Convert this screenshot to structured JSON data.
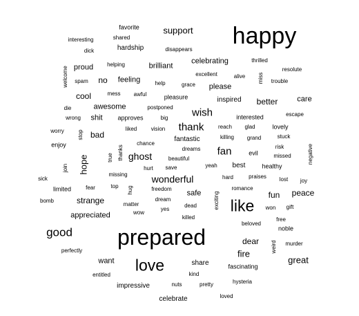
{
  "words": [
    "happy",
    "prepared",
    "like",
    "love",
    "good",
    "thank",
    "wish",
    "fan",
    "wonderful",
    "ghost",
    "support",
    "brilliant",
    "celebrating",
    "proud",
    "no",
    "feeling",
    "please",
    "better",
    "care",
    "cool",
    "awesome",
    "inspired",
    "interested",
    "hope",
    "bad",
    "shit",
    "approves",
    "fantastic",
    "strange",
    "appreciated",
    "fire",
    "dear",
    "fun",
    "peace",
    "great",
    "want",
    "share",
    "impressive",
    "celebrate",
    "safe",
    "best",
    "healthy",
    "favorite",
    "shared",
    "hardship",
    "interesting",
    "dick",
    "disappears",
    "thrilled",
    "helping",
    "resolute",
    "excellent",
    "alive",
    "miss",
    "trouble",
    "spam",
    "welcome",
    "help",
    "grace",
    "mess",
    "awful",
    "pleasure",
    "die",
    "postponed",
    "big",
    "escape",
    "wrong",
    "liked",
    "vision",
    "reach",
    "glad",
    "lovely",
    "worry",
    "stop",
    "killing",
    "grand",
    "enjoy",
    "chance",
    "dreams",
    "evil",
    "risk",
    "stuck",
    "thanks",
    "true",
    "beautiful",
    "missed",
    "negative",
    "join",
    "hurt",
    "save",
    "yeah",
    "missing",
    "hard",
    "praises",
    "lost",
    "joy",
    "sick",
    "hug",
    "top",
    "freedom",
    "romance",
    "limited",
    "fear",
    "dream",
    "dead",
    "exciting",
    "gift",
    "bomb",
    "matter",
    "yes",
    "won",
    "wow",
    "killed",
    "free",
    "beloved",
    "noble",
    "perfectly",
    "weird",
    "murder",
    "fascinating",
    "kind",
    "entitled",
    "nuts",
    "pretty",
    "hysteria",
    "loved"
  ]
}
